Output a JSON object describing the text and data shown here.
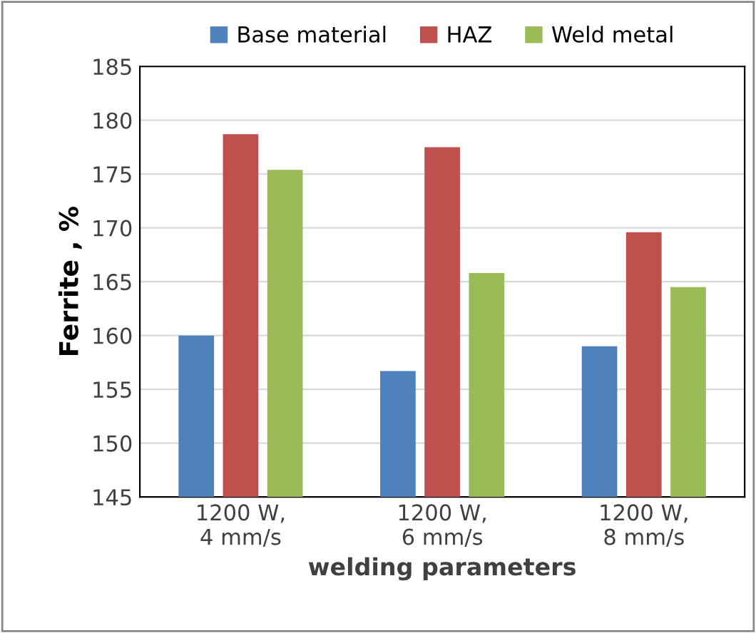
{
  "chart_data": {
    "type": "bar",
    "xlabel": "welding parameters",
    "ylabel": "Ferrite , %",
    "categories": [
      "1200 W,\n4 mm/s",
      "1200 W,\n6 mm/s",
      "1200 W,\n8 mm/s"
    ],
    "series": [
      {
        "name": "Base material",
        "color": "#4f81bd",
        "values": [
          160.0,
          156.7,
          159.0
        ]
      },
      {
        "name": "HAZ",
        "color": "#c0504d",
        "values": [
          178.7,
          177.5,
          169.6
        ]
      },
      {
        "name": "Weld metal",
        "color": "#9bbb59",
        "values": [
          175.4,
          165.8,
          164.5
        ]
      }
    ],
    "ylim": [
      145,
      185
    ],
    "yticks": [
      145,
      150,
      155,
      160,
      165,
      170,
      175,
      180,
      185
    ],
    "grid": "y",
    "legend": "top"
  }
}
